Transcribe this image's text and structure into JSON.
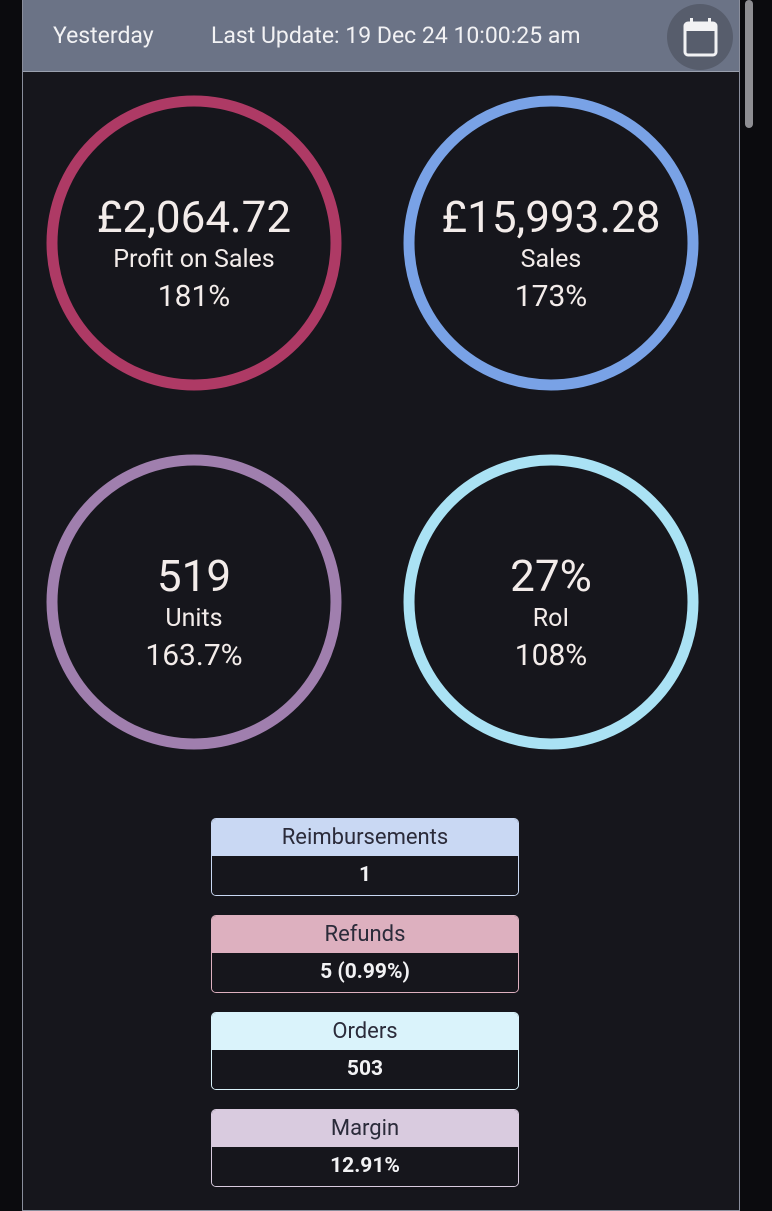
{
  "header": {
    "period": "Yesterday",
    "last_update": "Last Update: 19 Dec 24 10:00:25 am"
  },
  "metrics": [
    {
      "value": "£2,064.72",
      "label": "Profit on Sales",
      "change": "181%"
    },
    {
      "value": "£15,993.28",
      "label": "Sales",
      "change": "173%"
    },
    {
      "value": "519",
      "label": "Units",
      "change": "163.7%"
    },
    {
      "value": "27%",
      "label": "RoI",
      "change": "108%"
    }
  ],
  "stats": [
    {
      "label": "Reimbursements",
      "value": "1"
    },
    {
      "label": "Refunds",
      "value": "5 (0.99%)"
    },
    {
      "label": "Orders",
      "value": "503"
    },
    {
      "label": "Margin",
      "value": "12.91%"
    }
  ]
}
